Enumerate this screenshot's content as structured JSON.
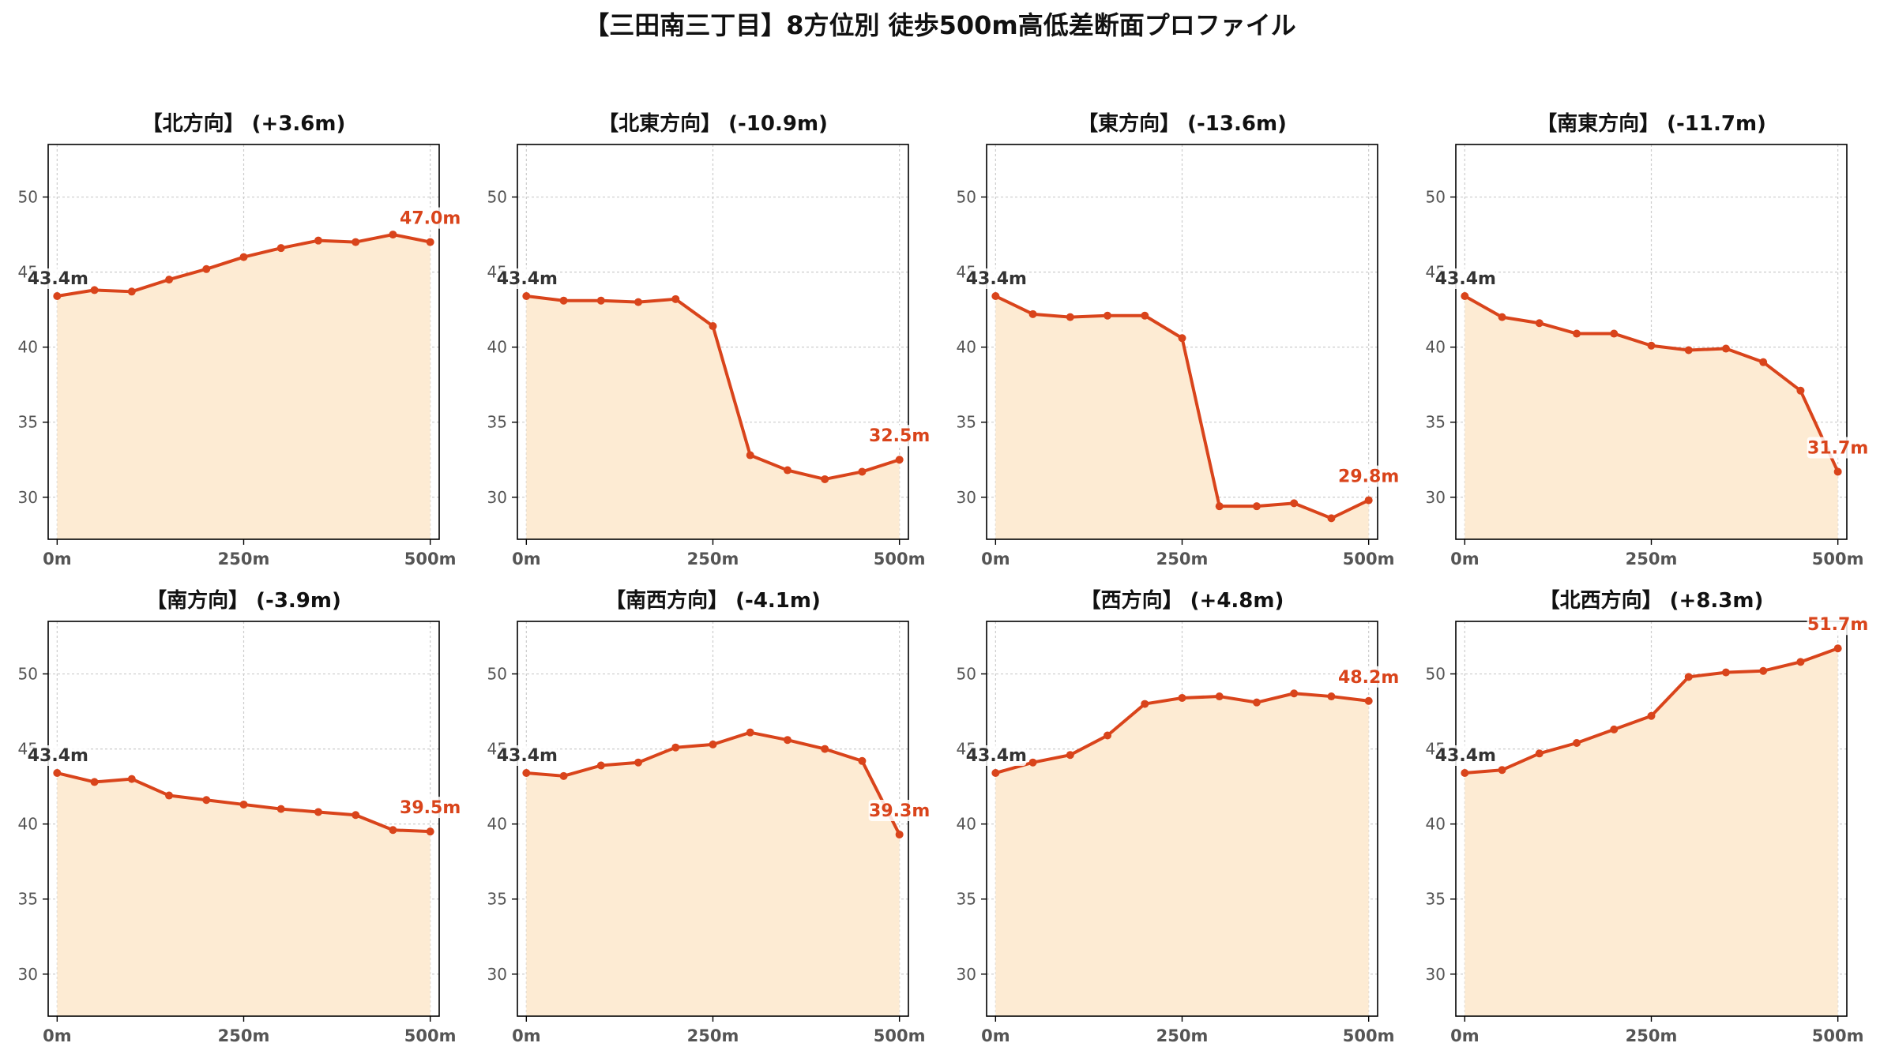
{
  "title": "【三田南三丁目】8方位別 徒歩500m高低差断面プロファイル",
  "colors": {
    "line": "#d9441b",
    "fill": "#fdebd3",
    "start_label": "#333333",
    "end_label": "#d9441b",
    "grid": "#cccccc",
    "axis": "#000000",
    "tick_text": "#555555",
    "title_text": "#111111"
  },
  "chart_data": [
    {
      "type": "area",
      "title": "【北方向】 (+3.6m)",
      "x": [
        0,
        50,
        100,
        150,
        200,
        250,
        300,
        350,
        400,
        450,
        500
      ],
      "y": [
        43.4,
        43.8,
        43.7,
        44.5,
        45.2,
        46.0,
        46.6,
        47.1,
        47.0,
        47.5,
        47.0
      ],
      "xticks": [
        "0m",
        "250m",
        "500m"
      ],
      "yticks": [
        30,
        35,
        40,
        45,
        50
      ],
      "ylim": [
        27.2,
        53.5
      ],
      "xlim": [
        -12,
        512
      ],
      "start_label": "43.4m",
      "end_label": "47.0m",
      "grid": true
    },
    {
      "type": "area",
      "title": "【北東方向】 (-10.9m)",
      "x": [
        0,
        50,
        100,
        150,
        200,
        250,
        300,
        350,
        400,
        450,
        500
      ],
      "y": [
        43.4,
        43.1,
        43.1,
        43.0,
        43.2,
        41.4,
        32.8,
        31.8,
        31.2,
        31.7,
        32.5
      ],
      "xticks": [
        "0m",
        "250m",
        "500m"
      ],
      "yticks": [
        30,
        35,
        40,
        45,
        50
      ],
      "ylim": [
        27.2,
        53.5
      ],
      "xlim": [
        -12,
        512
      ],
      "start_label": "43.4m",
      "end_label": "32.5m",
      "grid": true
    },
    {
      "type": "area",
      "title": "【東方向】 (-13.6m)",
      "x": [
        0,
        50,
        100,
        150,
        200,
        250,
        300,
        350,
        400,
        450,
        500
      ],
      "y": [
        43.4,
        42.2,
        42.0,
        42.1,
        42.1,
        40.6,
        29.4,
        29.4,
        29.6,
        28.6,
        29.8
      ],
      "xticks": [
        "0m",
        "250m",
        "500m"
      ],
      "yticks": [
        30,
        35,
        40,
        45,
        50
      ],
      "ylim": [
        27.2,
        53.5
      ],
      "xlim": [
        -12,
        512
      ],
      "start_label": "43.4m",
      "end_label": "29.8m",
      "grid": true
    },
    {
      "type": "area",
      "title": "【南東方向】 (-11.7m)",
      "x": [
        0,
        50,
        100,
        150,
        200,
        250,
        300,
        350,
        400,
        450,
        500
      ],
      "y": [
        43.4,
        42.0,
        41.6,
        40.9,
        40.9,
        40.1,
        39.8,
        39.9,
        39.0,
        37.1,
        31.7
      ],
      "xticks": [
        "0m",
        "250m",
        "500m"
      ],
      "yticks": [
        30,
        35,
        40,
        45,
        50
      ],
      "ylim": [
        27.2,
        53.5
      ],
      "xlim": [
        -12,
        512
      ],
      "start_label": "43.4m",
      "end_label": "31.7m",
      "grid": true
    },
    {
      "type": "area",
      "title": "【南方向】 (-3.9m)",
      "x": [
        0,
        50,
        100,
        150,
        200,
        250,
        300,
        350,
        400,
        450,
        500
      ],
      "y": [
        43.4,
        42.8,
        43.0,
        41.9,
        41.6,
        41.3,
        41.0,
        40.8,
        40.6,
        39.6,
        39.5
      ],
      "xticks": [
        "0m",
        "250m",
        "500m"
      ],
      "yticks": [
        30,
        35,
        40,
        45,
        50
      ],
      "ylim": [
        27.2,
        53.5
      ],
      "xlim": [
        -12,
        512
      ],
      "start_label": "43.4m",
      "end_label": "39.5m",
      "grid": true
    },
    {
      "type": "area",
      "title": "【南西方向】 (-4.1m)",
      "x": [
        0,
        50,
        100,
        150,
        200,
        250,
        300,
        350,
        400,
        450,
        500
      ],
      "y": [
        43.4,
        43.2,
        43.9,
        44.1,
        45.1,
        45.3,
        46.1,
        45.6,
        45.0,
        44.2,
        39.3
      ],
      "xticks": [
        "0m",
        "250m",
        "500m"
      ],
      "yticks": [
        30,
        35,
        40,
        45,
        50
      ],
      "ylim": [
        27.2,
        53.5
      ],
      "xlim": [
        -12,
        512
      ],
      "start_label": "43.4m",
      "end_label": "39.3m",
      "grid": true
    },
    {
      "type": "area",
      "title": "【西方向】 (+4.8m)",
      "x": [
        0,
        50,
        100,
        150,
        200,
        250,
        300,
        350,
        400,
        450,
        500
      ],
      "y": [
        43.4,
        44.1,
        44.6,
        45.9,
        48.0,
        48.4,
        48.5,
        48.1,
        48.7,
        48.5,
        48.2
      ],
      "xticks": [
        "0m",
        "250m",
        "500m"
      ],
      "yticks": [
        30,
        35,
        40,
        45,
        50
      ],
      "ylim": [
        27.2,
        53.5
      ],
      "xlim": [
        -12,
        512
      ],
      "start_label": "43.4m",
      "end_label": "48.2m",
      "grid": true
    },
    {
      "type": "area",
      "title": "【北西方向】 (+8.3m)",
      "x": [
        0,
        50,
        100,
        150,
        200,
        250,
        300,
        350,
        400,
        450,
        500
      ],
      "y": [
        43.4,
        43.6,
        44.7,
        45.4,
        46.3,
        47.2,
        49.8,
        50.1,
        50.2,
        50.8,
        51.7
      ],
      "xticks": [
        "0m",
        "250m",
        "500m"
      ],
      "yticks": [
        30,
        35,
        40,
        45,
        50
      ],
      "ylim": [
        27.2,
        53.5
      ],
      "xlim": [
        -12,
        512
      ],
      "start_label": "43.4m",
      "end_label": "51.7m",
      "grid": true
    }
  ]
}
